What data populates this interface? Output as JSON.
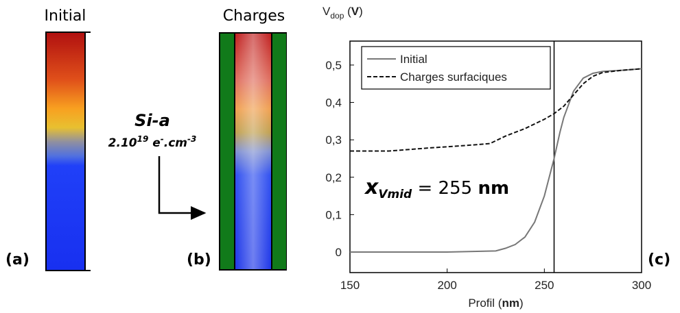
{
  "panels": {
    "a": {
      "title": "Initial",
      "label": "(a)"
    },
    "b": {
      "title": "Charges",
      "label": "(b)"
    },
    "c": {
      "label": "(c)"
    }
  },
  "material": {
    "name": "Si-a",
    "doping": {
      "mantissa": "2.10",
      "exponent": "19",
      "carrier": " e",
      "carrier_sup": "-",
      "unit": ".cm",
      "unit_sup": "-3"
    }
  },
  "chart_data": {
    "type": "line",
    "ylabel_parts": [
      "V",
      "dop",
      " (",
      "V",
      ")"
    ],
    "xlabel_parts": [
      "Profil (",
      "nm",
      ")"
    ],
    "xlim": [
      150,
      300
    ],
    "xticks": [
      150,
      200,
      250,
      300
    ],
    "ylim": [
      -0.055,
      0.564
    ],
    "yticks": [
      {
        "value": 0,
        "label": "0"
      },
      {
        "value": 0.1,
        "label": "0,1"
      },
      {
        "value": 0.2,
        "label": "0,2"
      },
      {
        "value": 0.3,
        "label": "0,3"
      },
      {
        "value": 0.4,
        "label": "0,4"
      },
      {
        "value": 0.5,
        "label": "0,5"
      }
    ],
    "legend": "top-left",
    "series": [
      {
        "name": "Initial",
        "color": "#777777",
        "dash": "solid",
        "x": [
          150,
          200,
          225,
          230,
          235,
          240,
          245,
          250,
          255,
          258,
          260,
          265,
          270,
          275,
          280,
          290,
          300
        ],
        "values": [
          0,
          0,
          0.003,
          0.01,
          0.02,
          0.04,
          0.08,
          0.15,
          0.25,
          0.32,
          0.36,
          0.43,
          0.465,
          0.478,
          0.483,
          0.486,
          0.49
        ]
      },
      {
        "name": "Charges surfaciques",
        "color": "#111111",
        "dash": "dashed",
        "x": [
          150,
          170,
          190,
          210,
          222,
          230,
          240,
          250,
          255,
          260,
          265,
          270,
          275,
          280,
          290,
          300
        ],
        "values": [
          0.27,
          0.27,
          0.278,
          0.285,
          0.29,
          0.31,
          0.33,
          0.355,
          0.37,
          0.39,
          0.42,
          0.45,
          0.47,
          0.48,
          0.486,
          0.49
        ]
      }
    ],
    "vline": {
      "x": 255
    },
    "annotation": {
      "symbol": "x",
      "subscript": "Vmid",
      "equals": " = 255 ",
      "unit": "nm"
    }
  }
}
